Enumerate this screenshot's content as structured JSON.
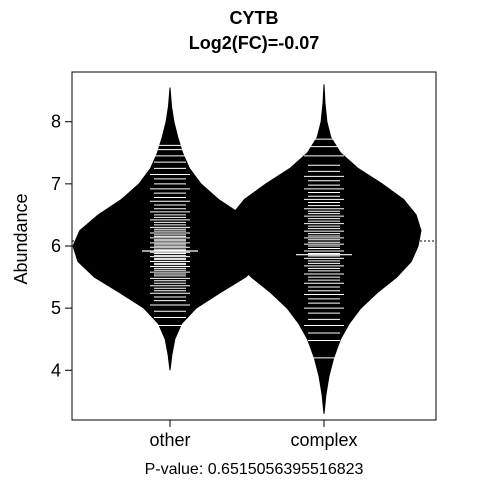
{
  "chart_data": {
    "type": "beanplot",
    "title": "CYTB",
    "subtitle": "Log2(FC)=-0.07",
    "xlabel": "P-value: 0.6515056395516823",
    "ylabel": "Abundance",
    "yticks": [
      "4",
      "5",
      "6",
      "7",
      "8"
    ],
    "ylim": [
      3.2,
      8.8
    ],
    "categories": [
      "other",
      "complex"
    ],
    "overall_median": 6.08,
    "groups": [
      {
        "name": "other",
        "median": 6.1,
        "mean": 5.92,
        "density": [
          [
            4.0,
            0.0
          ],
          [
            4.25,
            0.02
          ],
          [
            4.5,
            0.05
          ],
          [
            4.75,
            0.12
          ],
          [
            5.0,
            0.27
          ],
          [
            5.25,
            0.52
          ],
          [
            5.5,
            0.78
          ],
          [
            5.75,
            0.95
          ],
          [
            6.0,
            1.0
          ],
          [
            6.25,
            0.93
          ],
          [
            6.5,
            0.74
          ],
          [
            6.75,
            0.5
          ],
          [
            7.0,
            0.32
          ],
          [
            7.25,
            0.2
          ],
          [
            7.5,
            0.13
          ],
          [
            7.75,
            0.08
          ],
          [
            8.0,
            0.04
          ],
          [
            8.25,
            0.015
          ],
          [
            8.55,
            0.0
          ]
        ],
        "observations": [
          4.72,
          4.85,
          4.95,
          5.05,
          5.12,
          5.18,
          5.24,
          5.28,
          5.32,
          5.36,
          5.4,
          5.44,
          5.48,
          5.52,
          5.55,
          5.58,
          5.61,
          5.64,
          5.67,
          5.7,
          5.72,
          5.75,
          5.78,
          5.8,
          5.83,
          5.85,
          5.88,
          5.9,
          5.93,
          5.95,
          5.98,
          6.0,
          6.03,
          6.05,
          6.08,
          6.1,
          6.13,
          6.15,
          6.18,
          6.21,
          6.24,
          6.27,
          6.3,
          6.34,
          6.38,
          6.42,
          6.46,
          6.5,
          6.55,
          6.6,
          6.66,
          6.72,
          6.78,
          6.85,
          6.92,
          7.0,
          7.08,
          7.15,
          7.25,
          7.35,
          7.45,
          7.55,
          7.62
        ]
      },
      {
        "name": "complex",
        "median": 6.06,
        "mean": 5.86,
        "density": [
          [
            3.3,
            0.0
          ],
          [
            3.6,
            0.02
          ],
          [
            3.9,
            0.05
          ],
          [
            4.2,
            0.1
          ],
          [
            4.5,
            0.17
          ],
          [
            4.75,
            0.26
          ],
          [
            5.0,
            0.38
          ],
          [
            5.25,
            0.55
          ],
          [
            5.5,
            0.75
          ],
          [
            5.75,
            0.9
          ],
          [
            6.0,
            0.97
          ],
          [
            6.25,
            1.0
          ],
          [
            6.5,
            0.95
          ],
          [
            6.75,
            0.82
          ],
          [
            7.0,
            0.6
          ],
          [
            7.25,
            0.35
          ],
          [
            7.5,
            0.17
          ],
          [
            7.75,
            0.07
          ],
          [
            8.0,
            0.03
          ],
          [
            8.3,
            0.01
          ],
          [
            8.6,
            0.0
          ]
        ],
        "observations": [
          4.2,
          4.48,
          4.6,
          4.72,
          4.82,
          4.92,
          5.0,
          5.08,
          5.15,
          5.22,
          5.28,
          5.34,
          5.4,
          5.45,
          5.5,
          5.55,
          5.6,
          5.64,
          5.68,
          5.72,
          5.76,
          5.8,
          5.84,
          5.88,
          5.92,
          5.96,
          6.0,
          6.03,
          6.06,
          6.1,
          6.13,
          6.16,
          6.2,
          6.24,
          6.28,
          6.32,
          6.36,
          6.4,
          6.44,
          6.48,
          6.52,
          6.56,
          6.6,
          6.65,
          6.7,
          6.75,
          6.8,
          6.86,
          6.92,
          6.98,
          7.05,
          7.12,
          7.2,
          7.3,
          7.45,
          7.6,
          7.72
        ]
      }
    ]
  }
}
